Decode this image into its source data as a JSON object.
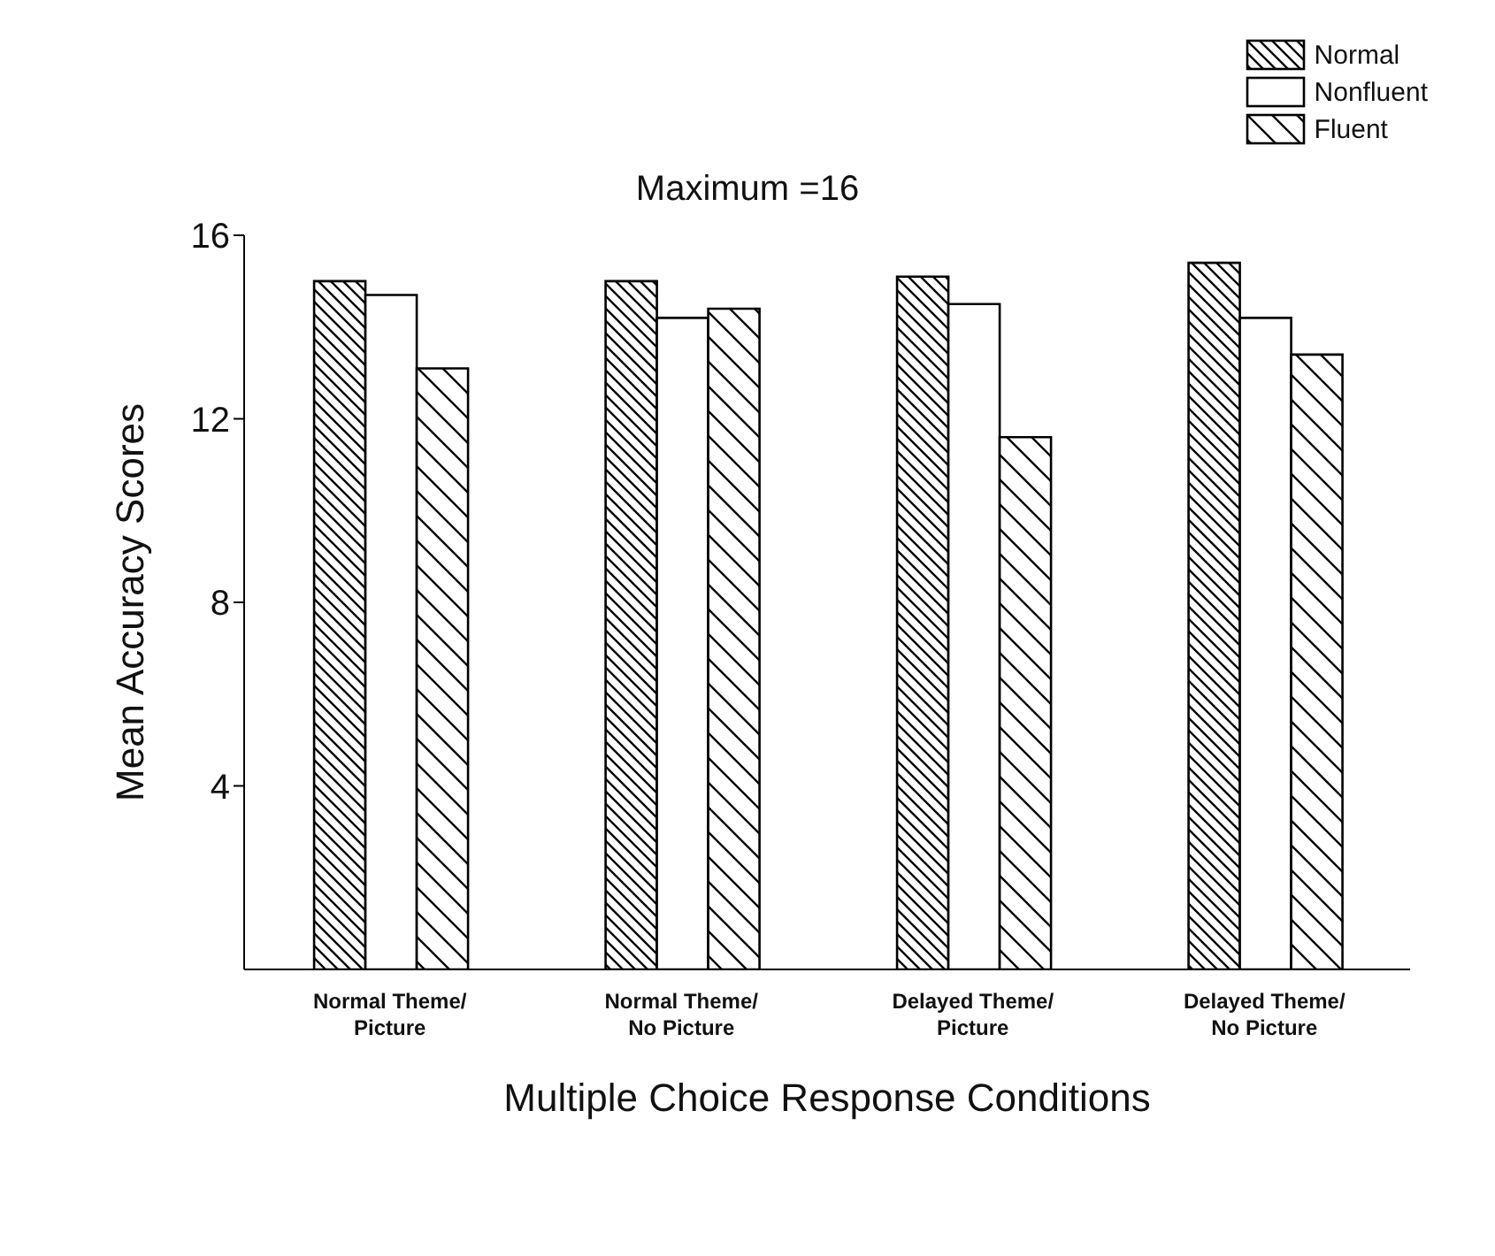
{
  "chart_data": {
    "type": "bar",
    "title": "Maximum =16",
    "xlabel": "Multiple Choice Response Conditions",
    "ylabel": "Mean Accuracy Scores",
    "categories": [
      "Normal Theme/ Picture",
      "Normal Theme/ No Picture",
      "Delayed Theme/ Picture",
      "Delayed Theme/ No Picture"
    ],
    "series": [
      {
        "name": "Normal",
        "color": "#000000",
        "values": [
          15.0,
          15.0,
          15.1,
          15.4
        ]
      },
      {
        "name": "Nonfluent",
        "color": "#ffffff",
        "values": [
          14.7,
          14.2,
          14.5,
          14.2
        ]
      },
      {
        "name": "Fluent",
        "color": "#000000",
        "values": [
          13.1,
          14.4,
          11.6,
          13.4
        ]
      }
    ],
    "ylim": [
      0,
      16
    ],
    "yticks": [
      4,
      8,
      12,
      16
    ],
    "grid": false,
    "legend": "top right"
  }
}
